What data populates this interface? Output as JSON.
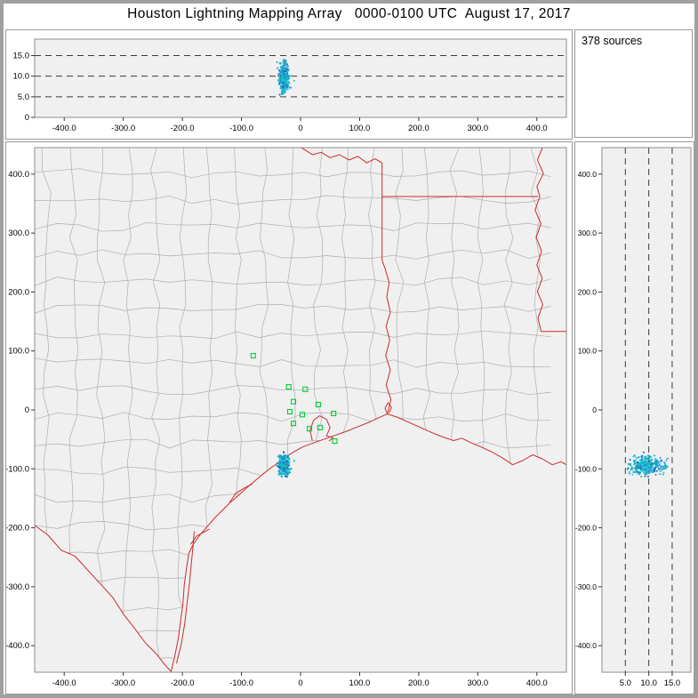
{
  "title": "Houston Lightning Mapping Array   0000-0100 UTC  August 17, 2017",
  "sources_panel": {
    "label": "378 sources"
  },
  "colors": {
    "panel_bg": "#ffffff",
    "plot_bg": "#f0f0f0",
    "border": "#8c8c8c",
    "grid_dash": "#3a3a3a",
    "county_line": "#aeaeae",
    "state_line": "#cc2a2a",
    "station": "#00cc33",
    "tick": "#333333"
  },
  "chart_data": [
    {
      "id": "alt_vs_east",
      "type": "scatter",
      "title": "Altitude vs east-west distance (km)",
      "xlim": [
        -450,
        450
      ],
      "ylim": [
        0,
        19
      ],
      "x_ticks": {
        "values": [
          -400,
          -300,
          -200,
          -100,
          0,
          100,
          200,
          300,
          400
        ],
        "labels": [
          "-400.0",
          "-300.0",
          "-200.0",
          "-100.0",
          "0",
          "100.0",
          "200.0",
          "300.0",
          "400.0"
        ]
      },
      "y_ticks": {
        "values": [
          0,
          5,
          10,
          15
        ],
        "labels": [
          "0",
          "5.0",
          "10.0",
          "15.0"
        ]
      },
      "ref_lines": [
        5,
        10,
        15
      ],
      "grid": "dashed-horizontal",
      "cluster_center": {
        "x": -28,
        "y": 9.8
      }
    },
    {
      "id": "plan_view",
      "type": "scatter",
      "title": "Plan view map (km east vs km north)",
      "xlim": [
        -450,
        450
      ],
      "ylim": [
        -445,
        445
      ],
      "x_ticks": {
        "values": [
          -400,
          -300,
          -200,
          -100,
          0,
          100,
          200,
          300,
          400
        ],
        "labels": [
          "-400.0",
          "-300.0",
          "-200.0",
          "-100.0",
          "0",
          "100.0",
          "200.0",
          "300.0",
          "400.0"
        ]
      },
      "y_ticks": {
        "values": [
          400,
          300,
          200,
          100,
          0,
          -100,
          -200,
          -300,
          -400
        ],
        "labels": [
          "400.0",
          "300.0",
          "200.0",
          "100.0",
          "0",
          "-100.0",
          "-200.0",
          "-300.0",
          "-400.0"
        ]
      },
      "grid": "off",
      "cluster_center": {
        "x": -28,
        "y": -95
      }
    },
    {
      "id": "alt_vs_north",
      "type": "scatter",
      "title": "Altitude vs north-south distance (km)",
      "xlim": [
        0,
        19
      ],
      "ylim": [
        -445,
        445
      ],
      "x_ticks": {
        "values": [
          5,
          10,
          15
        ],
        "labels": [
          "5.0",
          "10.0",
          "15.0"
        ]
      },
      "y_ticks": {
        "values": [
          400,
          300,
          200,
          100,
          0,
          -100,
          -200,
          -300,
          -400
        ],
        "labels": [
          "400.0",
          "300.0",
          "200.0",
          "100.0",
          "0",
          "-100.0",
          "-200.0",
          "-300.0",
          "-400.0"
        ]
      },
      "ref_lines": [
        5,
        10,
        15
      ],
      "grid": "dashed-vertical",
      "cluster_center": {
        "x": 9.8,
        "y": -95
      }
    }
  ],
  "sources": {
    "count": 378,
    "seed": 42,
    "center_east": -28,
    "center_north": -95,
    "center_alt": 9.8,
    "sigma_east": 4,
    "sigma_north": 8,
    "sigma_alt": 1.8,
    "alt_min": 5.5,
    "alt_max": 14,
    "palette": [
      "#17bfd6",
      "#0aa8c0",
      "#34cbe2",
      "#2e86d6",
      "#1d5fc2",
      "#26b39a"
    ]
  },
  "stations": [
    [
      -80,
      92
    ],
    [
      -20,
      39
    ],
    [
      8,
      35
    ],
    [
      -12,
      14
    ],
    [
      30,
      9
    ],
    [
      -18,
      -3
    ],
    [
      3,
      -8
    ],
    [
      56,
      -6
    ],
    [
      -12,
      -23
    ],
    [
      15,
      -32
    ],
    [
      33,
      -30
    ],
    [
      58,
      -53
    ]
  ],
  "county_grid": {
    "spacing": 46,
    "jitter": 16,
    "seed": 7,
    "step": 38
  },
  "geo": {
    "rio_grande": [
      [
        -450,
        -196
      ],
      [
        -428,
        -212
      ],
      [
        -405,
        -238
      ],
      [
        -382,
        -248
      ],
      [
        -360,
        -272
      ],
      [
        -338,
        -296
      ],
      [
        -318,
        -318
      ],
      [
        -300,
        -346
      ],
      [
        -280,
        -372
      ],
      [
        -262,
        -396
      ],
      [
        -244,
        -414
      ],
      [
        -230,
        -432
      ],
      [
        -219,
        -444
      ]
    ],
    "coastline": [
      [
        -219,
        -444
      ],
      [
        -213,
        -418
      ],
      [
        -207,
        -388
      ],
      [
        -203,
        -358
      ],
      [
        -199,
        -328
      ],
      [
        -197,
        -299
      ],
      [
        -193,
        -268
      ],
      [
        -189,
        -243
      ],
      [
        -181,
        -227
      ],
      [
        -170,
        -212
      ],
      [
        -158,
        -198
      ],
      [
        -146,
        -184
      ],
      [
        -133,
        -171
      ],
      [
        -119,
        -157
      ],
      [
        -104,
        -144
      ],
      [
        -91,
        -132
      ],
      [
        -78,
        -121
      ],
      [
        -64,
        -109
      ],
      [
        -51,
        -99
      ],
      [
        -37,
        -89
      ],
      [
        -24,
        -79
      ],
      [
        -11,
        -71
      ],
      [
        3,
        -63
      ],
      [
        19,
        -57
      ],
      [
        36,
        -51
      ],
      [
        56,
        -44
      ],
      [
        76,
        -37
      ],
      [
        96,
        -29
      ],
      [
        116,
        -21
      ],
      [
        133,
        -13
      ],
      [
        147,
        -7
      ],
      [
        163,
        -12
      ],
      [
        181,
        -20
      ],
      [
        201,
        -29
      ],
      [
        221,
        -38
      ],
      [
        241,
        -46
      ],
      [
        259,
        -52
      ],
      [
        273,
        -48
      ],
      [
        289,
        -56
      ],
      [
        306,
        -63
      ],
      [
        323,
        -71
      ],
      [
        341,
        -81
      ],
      [
        359,
        -93
      ],
      [
        376,
        -86
      ],
      [
        393,
        -76
      ],
      [
        409,
        -83
      ],
      [
        426,
        -93
      ],
      [
        441,
        -88
      ],
      [
        450,
        -93
      ]
    ],
    "padre_island": [
      [
        -210,
        -430
      ],
      [
        -202,
        -398
      ],
      [
        -196,
        -362
      ],
      [
        -192,
        -328
      ],
      [
        -188,
        -294
      ],
      [
        -185,
        -261
      ],
      [
        -182,
        -232
      ],
      [
        -180,
        -206
      ]
    ],
    "sabine_border": [
      [
        147,
        -7
      ],
      [
        153,
        18
      ],
      [
        145,
        42
      ],
      [
        152,
        68
      ],
      [
        144,
        92
      ],
      [
        151,
        118
      ],
      [
        145,
        142
      ],
      [
        152,
        166
      ],
      [
        146,
        192
      ],
      [
        150,
        216
      ],
      [
        143,
        240
      ],
      [
        138,
        254
      ],
      [
        138,
        362
      ]
    ],
    "tx_ar_border": [
      [
        138,
        362
      ],
      [
        138,
        419
      ]
    ],
    "red_river": [
      [
        138,
        419
      ],
      [
        126,
        426
      ],
      [
        112,
        419
      ],
      [
        97,
        430
      ],
      [
        82,
        424
      ],
      [
        66,
        433
      ],
      [
        50,
        428
      ],
      [
        35,
        437
      ],
      [
        20,
        433
      ],
      [
        8,
        441
      ],
      [
        2,
        444
      ]
    ],
    "ar_la_border": [
      [
        138,
        362
      ],
      [
        402,
        362
      ]
    ],
    "mississippi": [
      [
        409,
        444
      ],
      [
        401,
        424
      ],
      [
        411,
        401
      ],
      [
        400,
        379
      ],
      [
        405,
        362
      ],
      [
        397,
        339
      ],
      [
        407,
        316
      ],
      [
        399,
        293
      ],
      [
        408,
        269
      ],
      [
        400,
        246
      ],
      [
        409,
        223
      ],
      [
        401,
        201
      ],
      [
        410,
        179
      ],
      [
        402,
        156
      ],
      [
        407,
        133
      ]
    ],
    "la_ms_border": [
      [
        407,
        133
      ],
      [
        450,
        133
      ]
    ],
    "galveston_bay": [
      [
        20,
        -52
      ],
      [
        16,
        -35
      ],
      [
        22,
        -18
      ],
      [
        32,
        -10
      ],
      [
        44,
        -16
      ],
      [
        50,
        -30
      ],
      [
        44,
        -44
      ],
      [
        55,
        -47
      ],
      [
        48,
        -53
      ]
    ],
    "matagorda_bay": [
      [
        -120,
        -157
      ],
      [
        -110,
        -142
      ],
      [
        -96,
        -133
      ],
      [
        -82,
        -126
      ]
    ],
    "corpus_bay": [
      [
        -186,
        -228
      ],
      [
        -176,
        -214
      ],
      [
        -163,
        -207
      ],
      [
        -154,
        -202
      ]
    ],
    "sabine_lake": [
      [
        147,
        -7
      ],
      [
        143,
        3
      ],
      [
        148,
        12
      ],
      [
        154,
        4
      ],
      [
        150,
        -5
      ]
    ]
  }
}
